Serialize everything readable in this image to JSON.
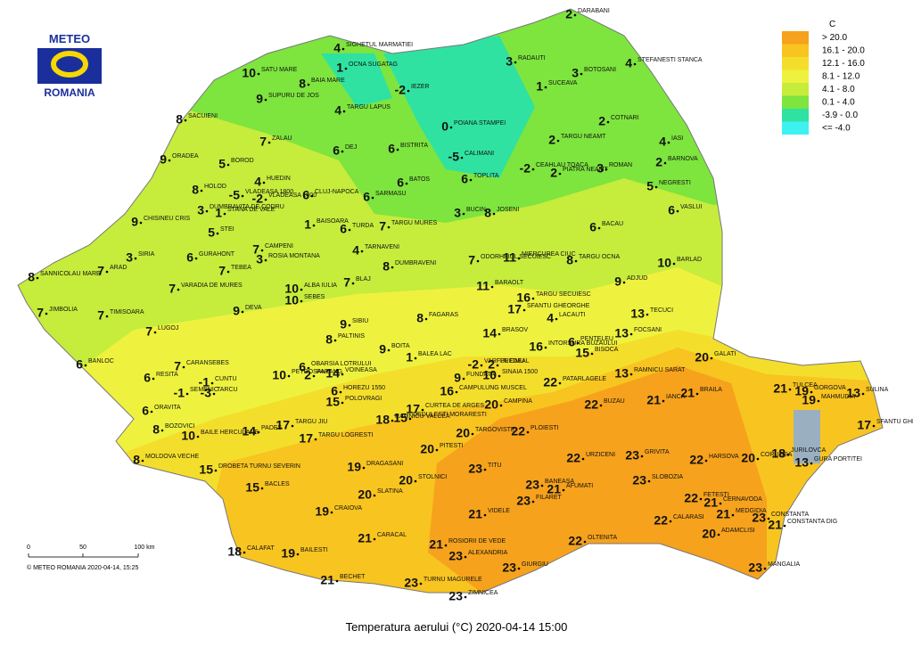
{
  "logo": {
    "top": "METEO",
    "bottom": "ROMANIA"
  },
  "legend": {
    "unit": "C",
    "classes": [
      {
        "label": "> 20.0",
        "color": "#f6a21c"
      },
      {
        "label": "16.1 - 20.0",
        "color": "#f8c420"
      },
      {
        "label": "12.1 - 16.0",
        "color": "#f4de2c"
      },
      {
        "label": "8.1 - 12.0",
        "color": "#eef23e"
      },
      {
        "label": "4.1 - 8.0",
        "color": "#c6ec3c"
      },
      {
        "label": "0.1 - 4.0",
        "color": "#7ee43e"
      },
      {
        "label": "-3.9 - 0.0",
        "color": "#2fe2a2"
      },
      {
        "label": "<= -4.0",
        "color": "#3ef2f2"
      }
    ]
  },
  "stations": [
    {
      "name": "DARABANI",
      "value": 2
    },
    {
      "name": "SIGHETUL MARMATIEI",
      "value": 4
    },
    {
      "name": "OCNA SUGATAG",
      "value": 1
    },
    {
      "name": "RADAUTI",
      "value": 3
    },
    {
      "name": "STEFANESTI STANCA",
      "value": 4
    },
    {
      "name": "SATU MARE",
      "value": 10
    },
    {
      "name": "BAIA MARE",
      "value": 8
    },
    {
      "name": "BOTOSANI",
      "value": 3
    },
    {
      "name": "IEZER",
      "value": -2
    },
    {
      "name": "SUCEAVA",
      "value": 1
    },
    {
      "name": "SUPURU DE JOS",
      "value": 9
    },
    {
      "name": "TARGU LAPUS",
      "value": 4
    },
    {
      "name": "SACUIENI",
      "value": 8
    },
    {
      "name": "POIANA STAMPEI",
      "value": 0
    },
    {
      "name": "COTNARI",
      "value": 2
    },
    {
      "name": "ZALAU",
      "value": 7
    },
    {
      "name": "DEJ",
      "value": 6
    },
    {
      "name": "BISTRITA",
      "value": 6
    },
    {
      "name": "TARGU NEAMT",
      "value": 2
    },
    {
      "name": "IASI",
      "value": 4
    },
    {
      "name": "ORADEA",
      "value": 9
    },
    {
      "name": "CALIMANI",
      "value": -5
    },
    {
      "name": "BOROD",
      "value": 5
    },
    {
      "name": "ROMAN",
      "value": 3
    },
    {
      "name": "PIATRA NEAMT",
      "value": 2
    },
    {
      "name": "BARNOVA",
      "value": 2
    },
    {
      "name": "CEAHLAU TOACA",
      "value": -2
    },
    {
      "name": "VLADEASA 1800",
      "value": -5
    },
    {
      "name": "HUEDIN",
      "value": 4
    },
    {
      "name": "BATOS",
      "value": 6
    },
    {
      "name": "TOPLITA",
      "value": 6
    },
    {
      "name": "NEGRESTI",
      "value": 5
    },
    {
      "name": "HOLOD",
      "value": 8
    },
    {
      "name": "VLADEASA 1400",
      "value": -2
    },
    {
      "name": "CLUJ-NAPOCA",
      "value": 6
    },
    {
      "name": "SARMASU",
      "value": 6
    },
    {
      "name": "JOSENI",
      "value": 8
    },
    {
      "name": "VASLUI",
      "value": 6
    },
    {
      "name": "CHISINEU CRIS",
      "value": 9
    },
    {
      "name": "DUMBRAVITA DE CODRU",
      "value": 3
    },
    {
      "name": "STANA DE VALE",
      "value": 1
    },
    {
      "name": "BAISOARA",
      "value": 1
    },
    {
      "name": "TURDA",
      "value": 6
    },
    {
      "name": "TARGU MURES",
      "value": 7
    },
    {
      "name": "BUCIN",
      "value": 3
    },
    {
      "name": "STEI",
      "value": 5
    },
    {
      "name": "BACAU",
      "value": 6
    },
    {
      "name": "CAMPENI",
      "value": 7
    },
    {
      "name": "ROSIA MONTANA",
      "value": 3
    },
    {
      "name": "TARNAVENI",
      "value": 4
    },
    {
      "name": "ODORHEIUL SECUIESC",
      "value": 7
    },
    {
      "name": "MIERCUREA CIUC",
      "value": 11
    },
    {
      "name": "TARGU OCNA",
      "value": 8
    },
    {
      "name": "BARLAD",
      "value": 10
    },
    {
      "name": "SIRIA",
      "value": 3
    },
    {
      "name": "GURAHONT",
      "value": 6
    },
    {
      "name": "DUMBRAVENI",
      "value": 8
    },
    {
      "name": "SANNICOLAU MARE",
      "value": 8
    },
    {
      "name": "ARAD",
      "value": 7
    },
    {
      "name": "TEBEA",
      "value": 7
    },
    {
      "name": "VARADIA DE MURES",
      "value": 7
    },
    {
      "name": "BLAJ",
      "value": 7
    },
    {
      "name": "ALBA IULIA",
      "value": 10
    },
    {
      "name": "SEBES",
      "value": 10
    },
    {
      "name": "ADJUD",
      "value": 9
    },
    {
      "name": "BARAOLT",
      "value": 11
    },
    {
      "name": "TARGU SECUIESC",
      "value": 16
    },
    {
      "name": "SFANTU GHEORGHE",
      "value": 17
    },
    {
      "name": "JIMBOLIA",
      "value": 7
    },
    {
      "name": "TIMISOARA",
      "value": 7
    },
    {
      "name": "DEVA",
      "value": 9
    },
    {
      "name": "SIBIU",
      "value": 9
    },
    {
      "name": "FAGARAS",
      "value": 8
    },
    {
      "name": "LACAUTI",
      "value": 4
    },
    {
      "name": "TECUCI",
      "value": 13
    },
    {
      "name": "LUGOJ",
      "value": 7
    },
    {
      "name": "BRASOV",
      "value": 14
    },
    {
      "name": "INTORSURA BUZAULUI",
      "value": 16
    },
    {
      "name": "FOCSANI",
      "value": 13
    },
    {
      "name": "PALTINIS",
      "value": 8
    },
    {
      "name": "BOITA",
      "value": 9
    },
    {
      "name": "BALEA LAC",
      "value": 1
    },
    {
      "name": "PENTELEU",
      "value": 6
    },
    {
      "name": "BISOCA",
      "value": 15
    },
    {
      "name": "BANLOC",
      "value": 6
    },
    {
      "name": "CARANSEBES",
      "value": 7
    },
    {
      "name": "OBARSIA LOTRULUI",
      "value": 6
    },
    {
      "name": "PETROSANI",
      "value": 10
    },
    {
      "name": "PARANG",
      "value": 2
    },
    {
      "name": "VOINEASA",
      "value": 14
    },
    {
      "name": "VARFUL OMU",
      "value": -2
    },
    {
      "name": "PREDEAL",
      "value": 2
    },
    {
      "name": "RAMNICU SARAT",
      "value": 13
    },
    {
      "name": "GALATI",
      "value": 20
    },
    {
      "name": "RESITA",
      "value": 6
    },
    {
      "name": "CUNTU",
      "value": -1
    },
    {
      "name": "TARCU",
      "value": -3
    },
    {
      "name": "SEMENIC",
      "value": -1
    },
    {
      "name": "HOREZU 1550",
      "value": 6
    },
    {
      "name": "CURTEA DE ARGES",
      "value": 17
    },
    {
      "name": "CAMPULUNG MUSCEL",
      "value": 16
    },
    {
      "name": "FUNDATA",
      "value": 9
    },
    {
      "name": "SINAIA 1500",
      "value": 10
    },
    {
      "name": "PATARLAGELE",
      "value": 22
    },
    {
      "name": "BRAILA",
      "value": 21
    },
    {
      "name": "TULCEA",
      "value": 21
    },
    {
      "name": "GORGOVA",
      "value": 19
    },
    {
      "name": "SULINA",
      "value": 13
    },
    {
      "name": "IANCA",
      "value": 21
    },
    {
      "name": "ORAVITA",
      "value": 6
    },
    {
      "name": "POLOVRAGI",
      "value": 15
    },
    {
      "name": "RAMNICU VALCEA",
      "value": 18
    },
    {
      "name": "DEDULESTI MORARESTI",
      "value": 15
    },
    {
      "name": "TARGU JIU",
      "value": 17
    },
    {
      "name": "PADES",
      "value": 14
    },
    {
      "name": "CAMPINA",
      "value": 20
    },
    {
      "name": "BUZAU",
      "value": 22
    },
    {
      "name": "MAHMUDIA",
      "value": 19
    },
    {
      "name": "SFANTU GHEORGHE",
      "value": 17
    },
    {
      "name": "BOZOVICI",
      "value": 8
    },
    {
      "name": "BAILE HERCULANE",
      "value": 10
    },
    {
      "name": "TARGU LOGRESTI",
      "value": 17
    },
    {
      "name": "PITESTI",
      "value": 20
    },
    {
      "name": "TARGOVISTE",
      "value": 20
    },
    {
      "name": "PLOIESTI",
      "value": 22
    },
    {
      "name": "MOLDOVA VECHE",
      "value": 8
    },
    {
      "name": "DRAGASANI",
      "value": 19
    },
    {
      "name": "URZICENI",
      "value": 22
    },
    {
      "name": "GRIVITA",
      "value": 23
    },
    {
      "name": "HARSOVA",
      "value": 22
    },
    {
      "name": "CORUGEA",
      "value": 20
    },
    {
      "name": "JURILOVCA",
      "value": 18
    },
    {
      "name": "GURA PORTITEI",
      "value": 13
    },
    {
      "name": "DROBETA TURNU SEVERIN",
      "value": 15
    },
    {
      "name": "TITU",
      "value": 23
    },
    {
      "name": "STOLNICI",
      "value": 20
    },
    {
      "name": "AFUMATI",
      "value": 21
    },
    {
      "name": "SLOBOZIA",
      "value": 23
    },
    {
      "name": "BACLES",
      "value": 15
    },
    {
      "name": "SLATINA",
      "value": 20
    },
    {
      "name": "BANEASA",
      "value": 23
    },
    {
      "name": "FILARET",
      "value": 23
    },
    {
      "name": "FETESTI",
      "value": 22
    },
    {
      "name": "CERNAVODA",
      "value": 21
    },
    {
      "name": "CRAIOVA",
      "value": 19
    },
    {
      "name": "VIDELE",
      "value": 21
    },
    {
      "name": "MEDGIDIA",
      "value": 21
    },
    {
      "name": "CONSTANTA",
      "value": 23
    },
    {
      "name": "CALARASI",
      "value": 22
    },
    {
      "name": "CONSTANTA DIG",
      "value": 21
    },
    {
      "name": "ADAMCLISI",
      "value": 20
    },
    {
      "name": "CARACAL",
      "value": 21
    },
    {
      "name": "ROSIORII DE VEDE",
      "value": 21
    },
    {
      "name": "OLTENITA",
      "value": 22
    },
    {
      "name": "CALAFAT",
      "value": 18
    },
    {
      "name": "BAILESTI",
      "value": 19
    },
    {
      "name": "ALEXANDRIA",
      "value": 23
    },
    {
      "name": "GIURGIU",
      "value": 23
    },
    {
      "name": "MANGALIA",
      "value": 23
    },
    {
      "name": "BECHET",
      "value": 21
    },
    {
      "name": "TURNU MAGURELE",
      "value": 23
    },
    {
      "name": "ZIMNICEA",
      "value": 23
    }
  ],
  "scale": {
    "ticks": [
      "0",
      "50",
      "100 km"
    ]
  },
  "copyright": "© METEO ROMANIA 2020-04-14, 15:25",
  "caption": "Temperatura aerului (°C) 2020-04-14 15:00"
}
